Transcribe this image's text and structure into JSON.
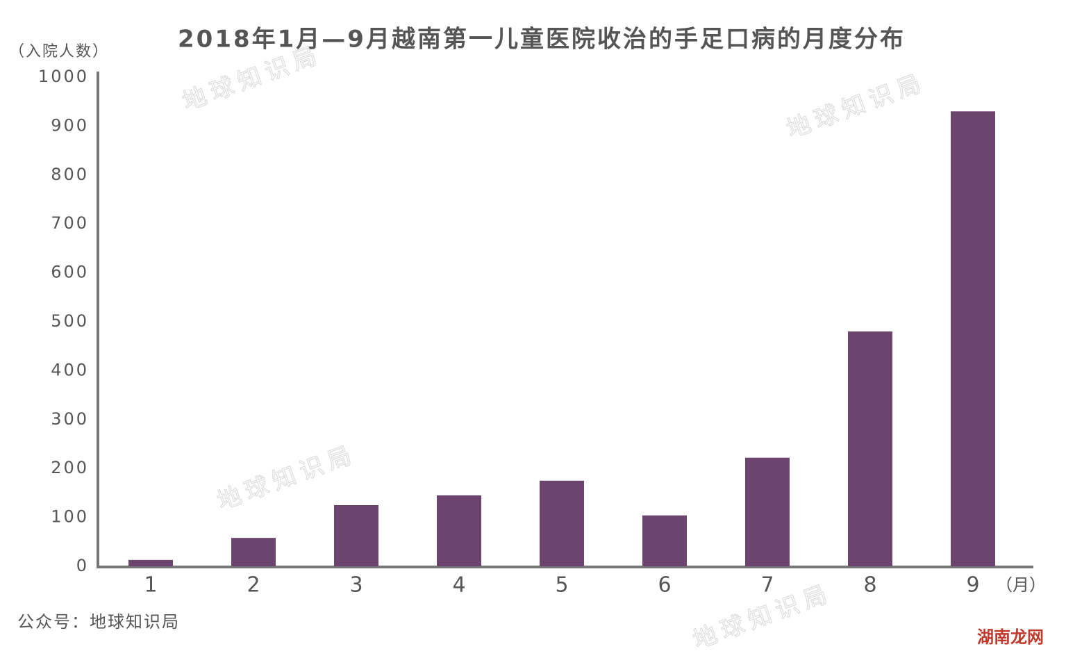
{
  "chart_data": {
    "type": "bar",
    "title": "2018年1月—9月越南第一儿童医院收治的手足口病的月度分布",
    "y_label": "（入院人数）",
    "x_label": "（月）",
    "source": "公众号：地球知识局",
    "watermarks": [
      "地球知识局",
      "地球知识局",
      "地球知识局",
      "地球知识局",
      "湖南龙网"
    ],
    "categories": [
      "1",
      "2",
      "3",
      "4",
      "5",
      "6",
      "7",
      "8",
      "9"
    ],
    "values": [
      13,
      58,
      125,
      145,
      175,
      104,
      222,
      480,
      930
    ],
    "color": "#6b456d",
    "ylim": [
      0,
      1000
    ],
    "yticks": [
      0,
      100,
      200,
      300,
      400,
      500,
      600,
      700,
      800,
      900,
      1000
    ],
    "grid": false
  }
}
